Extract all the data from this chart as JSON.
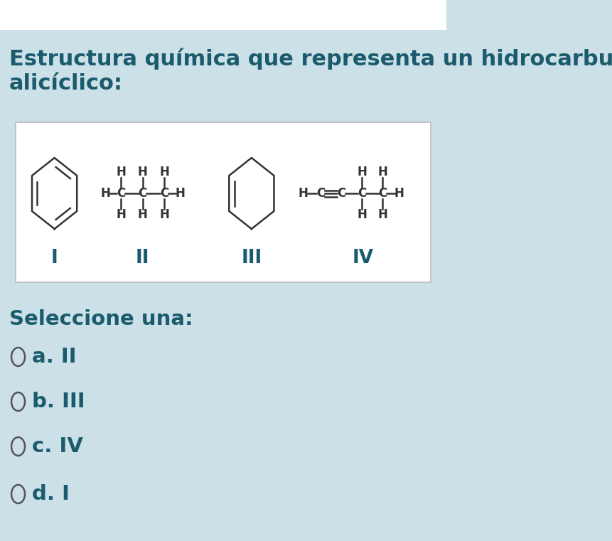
{
  "bg_top": "#ffffff",
  "bg_main": "#cce0e8",
  "white_box_color": "#ffffff",
  "text_color": "#1a5c6e",
  "bond_color": "#333333",
  "title_text": "Estructura química que representa un hidrocarburo\nalicíclico:",
  "title_fontsize": 22,
  "structure_labels": [
    "I",
    "II",
    "III",
    "IV"
  ],
  "options": [
    "a. II",
    "b. III",
    "c. IV",
    "d. I"
  ],
  "select_text": "Seleccione una:",
  "select_fontsize": 21,
  "option_fontsize": 21,
  "label_fontsize": 19
}
